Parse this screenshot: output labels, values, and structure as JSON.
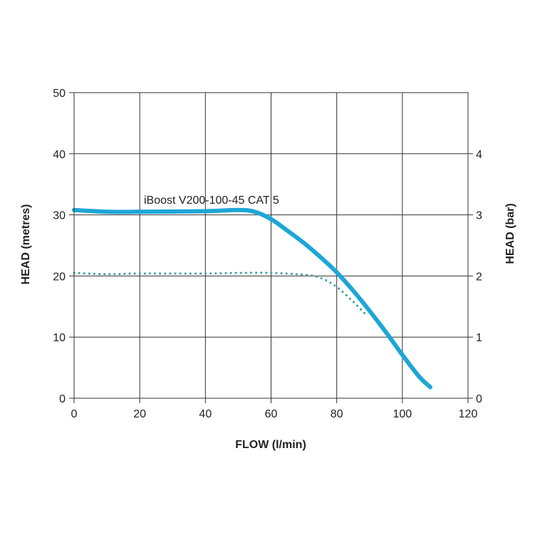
{
  "chart_data": {
    "type": "line",
    "title": "",
    "xlabel": "FLOW (l/min)",
    "ylabel": "HEAD (metres)",
    "y2label": "HEAD (bar)",
    "xlim": [
      0,
      120
    ],
    "ylim": [
      0,
      50
    ],
    "y2lim": [
      0,
      5
    ],
    "x_ticks": [
      0,
      20,
      40,
      60,
      80,
      100,
      120
    ],
    "y_ticks": [
      0,
      10,
      20,
      30,
      40,
      50
    ],
    "y2_ticks": [
      0,
      1,
      2,
      3,
      4
    ],
    "grid": true,
    "annotation": "iBoost V200-100-45 CAT 5",
    "series": [
      {
        "style": "solid",
        "color": "#1ea6d6",
        "points": [
          [
            0,
            30.8
          ],
          [
            10,
            30.5
          ],
          [
            20,
            30.5
          ],
          [
            40,
            30.6
          ],
          [
            50,
            30.8
          ],
          [
            55,
            30.5
          ],
          [
            60,
            29.3
          ],
          [
            65,
            27.4
          ],
          [
            70,
            25.4
          ],
          [
            75,
            23.1
          ],
          [
            80,
            20.6
          ],
          [
            85,
            17.6
          ],
          [
            90,
            14.3
          ],
          [
            95,
            10.8
          ],
          [
            100,
            7.1
          ],
          [
            105,
            3.6
          ],
          [
            108.5,
            1.8
          ]
        ]
      },
      {
        "style": "dotted",
        "color": "#3b9e9a",
        "points": [
          [
            0,
            20.5
          ],
          [
            10,
            20.3
          ],
          [
            20,
            20.4
          ],
          [
            40,
            20.4
          ],
          [
            50,
            20.5
          ],
          [
            60,
            20.5
          ],
          [
            70,
            20.2
          ],
          [
            75,
            19.7
          ],
          [
            80,
            18.2
          ],
          [
            85,
            15.8
          ],
          [
            89,
            13.6
          ]
        ]
      }
    ]
  }
}
